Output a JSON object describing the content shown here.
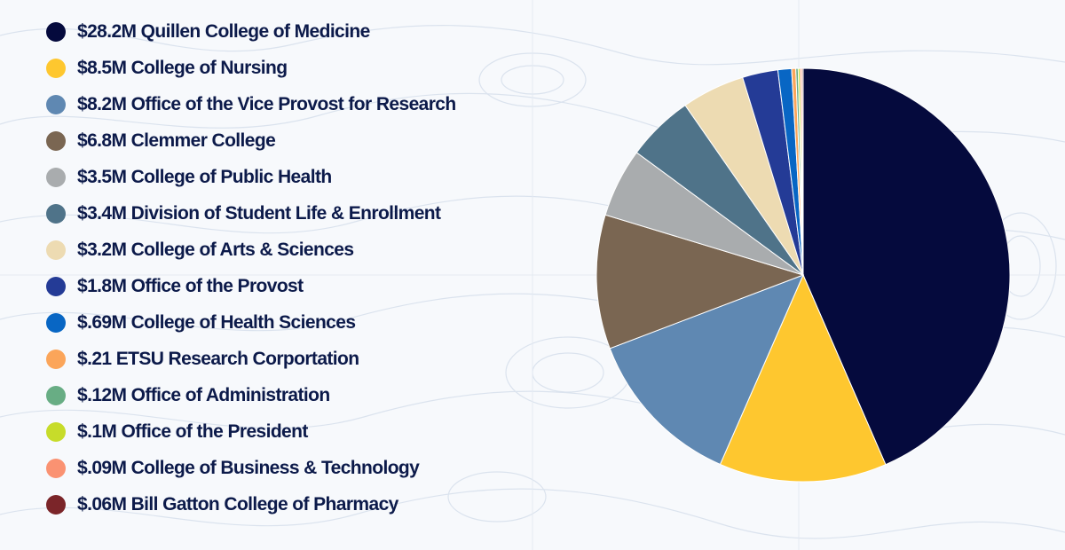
{
  "chart_data": {
    "type": "pie",
    "slices": [
      {
        "label": "$28.2M Quillen College of Medicine",
        "value": 28.2,
        "color": "#050a3d"
      },
      {
        "label": "$8.5M College of Nursing",
        "value": 8.5,
        "color": "#fec72f"
      },
      {
        "label": "$8.2M Office of the Vice Provost for Research",
        "value": 8.2,
        "color": "#5f88b2"
      },
      {
        "label": "$6.8M Clemmer College",
        "value": 6.8,
        "color": "#7a6652"
      },
      {
        "label": "$3.5M College of Public Health",
        "value": 3.5,
        "color": "#a9acae"
      },
      {
        "label": "$3.4M Division of Student Life & Enrollment",
        "value": 3.4,
        "color": "#4f7389"
      },
      {
        "label": "$3.2M College of Arts & Sciences",
        "value": 3.2,
        "color": "#eddbb2"
      },
      {
        "label": "$1.8M Office of the Provost",
        "value": 1.8,
        "color": "#243b96"
      },
      {
        "label": "$.69M College of Health Sciences",
        "value": 0.69,
        "color": "#0866c4"
      },
      {
        "label": "$.21 ETSU Research Corportation",
        "value": 0.21,
        "color": "#fba55a"
      },
      {
        "label": "$.12M Office of Administration",
        "value": 0.12,
        "color": "#68ad84"
      },
      {
        "label": "$.1M Office of the President",
        "value": 0.1,
        "color": "#c7dc2a"
      },
      {
        "label": "$.09M College of Business & Technology",
        "value": 0.09,
        "color": "#fa9272"
      },
      {
        "label": "$.06M Bill Gatton College of Pharmacy",
        "value": 0.06,
        "color": "#7b2529"
      }
    ],
    "legend": "left",
    "start_angle": "12 o'clock",
    "direction": "clockwise"
  }
}
